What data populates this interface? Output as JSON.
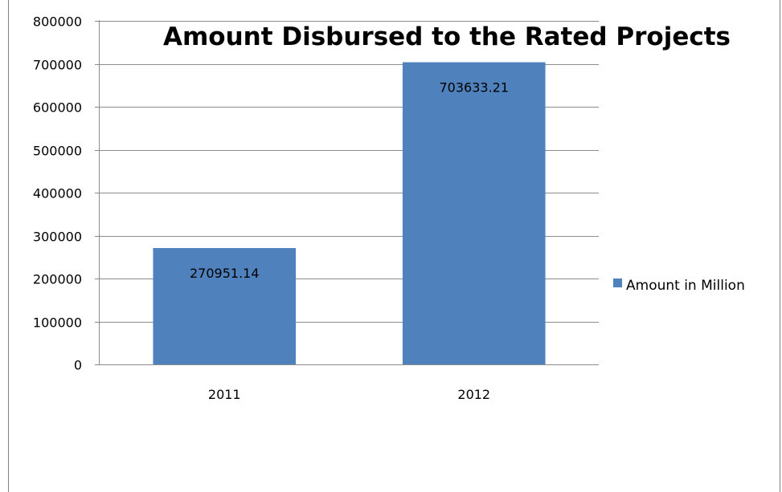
{
  "chart_data": {
    "type": "bar",
    "title": "Amount Disbursed to the Rated Projects",
    "categories": [
      "2011",
      "2012"
    ],
    "series": [
      {
        "name": "Amount in Million",
        "values": [
          270951.14,
          703633.21
        ],
        "color": "#4F81BD"
      }
    ],
    "data_labels": [
      "270951.14",
      "703633.21"
    ],
    "y_ticks": [
      "0",
      "100000",
      "200000",
      "300000",
      "400000",
      "500000",
      "600000",
      "700000",
      "800000"
    ],
    "ylim": [
      0,
      800000
    ],
    "grid": true,
    "legend_position": "right"
  }
}
